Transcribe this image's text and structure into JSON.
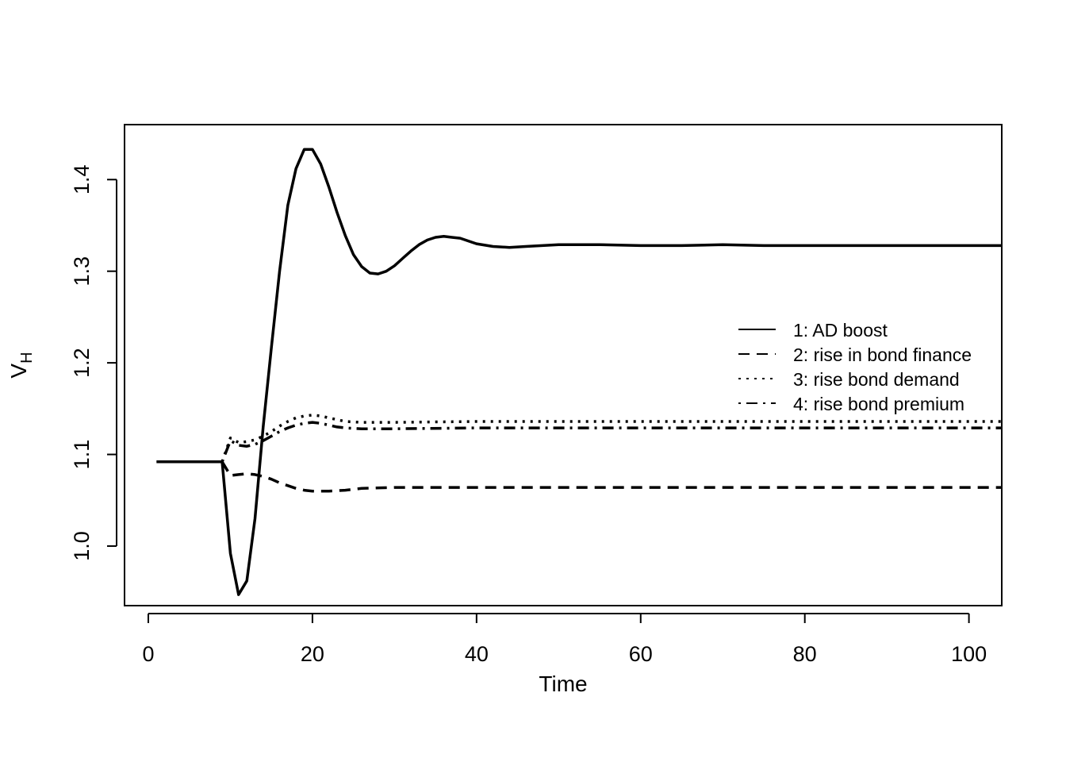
{
  "chart_data": {
    "type": "line",
    "title": "",
    "xlabel": "Time",
    "ylabel": "V",
    "ylabel_subscript": "H",
    "xlim": [
      -2.9,
      104.0
    ],
    "ylim": [
      0.935,
      1.46
    ],
    "x_ticks": [
      0,
      20,
      40,
      60,
      80,
      100
    ],
    "y_ticks": [
      1.0,
      1.1,
      1.2,
      1.3,
      1.4
    ],
    "x_tick_labels": [
      "0",
      "20",
      "40",
      "60",
      "80",
      "100"
    ],
    "y_tick_labels": [
      "1.0",
      "1.1",
      "1.2",
      "1.3",
      "1.4"
    ],
    "grid": false,
    "legend_position": "right",
    "series": [
      {
        "name": "1: AD boost",
        "dash": "solid",
        "points": [
          [
            1,
            1.092
          ],
          [
            9,
            1.092
          ],
          [
            10,
            0.992
          ],
          [
            11,
            0.947
          ],
          [
            12,
            0.962
          ],
          [
            13,
            1.03
          ],
          [
            14,
            1.13
          ],
          [
            15,
            1.217
          ],
          [
            16,
            1.3
          ],
          [
            17,
            1.372
          ],
          [
            18,
            1.412
          ],
          [
            19,
            1.433
          ],
          [
            20,
            1.433
          ],
          [
            21,
            1.417
          ],
          [
            22,
            1.392
          ],
          [
            23,
            1.364
          ],
          [
            24,
            1.339
          ],
          [
            25,
            1.318
          ],
          [
            26,
            1.305
          ],
          [
            27,
            1.298
          ],
          [
            28,
            1.297
          ],
          [
            29,
            1.3
          ],
          [
            30,
            1.306
          ],
          [
            31,
            1.314
          ],
          [
            32,
            1.322
          ],
          [
            33,
            1.329
          ],
          [
            34,
            1.334
          ],
          [
            35,
            1.337
          ],
          [
            36,
            1.338
          ],
          [
            37,
            1.337
          ],
          [
            38,
            1.336
          ],
          [
            39,
            1.333
          ],
          [
            40,
            1.33
          ],
          [
            42,
            1.327
          ],
          [
            44,
            1.326
          ],
          [
            46,
            1.327
          ],
          [
            48,
            1.328
          ],
          [
            50,
            1.329
          ],
          [
            55,
            1.329
          ],
          [
            60,
            1.328
          ],
          [
            65,
            1.328
          ],
          [
            70,
            1.329
          ],
          [
            75,
            1.328
          ],
          [
            80,
            1.328
          ],
          [
            90,
            1.328
          ],
          [
            100,
            1.328
          ],
          [
            104,
            1.328
          ]
        ]
      },
      {
        "name": "2: rise in bond finance",
        "dash": "dashed",
        "points": [
          [
            9,
            1.092
          ],
          [
            10,
            1.077
          ],
          [
            11,
            1.078
          ],
          [
            12,
            1.079
          ],
          [
            13,
            1.078
          ],
          [
            14,
            1.076
          ],
          [
            15,
            1.073
          ],
          [
            16,
            1.069
          ],
          [
            17,
            1.066
          ],
          [
            18,
            1.063
          ],
          [
            19,
            1.061
          ],
          [
            20,
            1.06
          ],
          [
            22,
            1.06
          ],
          [
            24,
            1.061
          ],
          [
            26,
            1.063
          ],
          [
            30,
            1.064
          ],
          [
            40,
            1.064
          ],
          [
            60,
            1.064
          ],
          [
            80,
            1.064
          ],
          [
            104,
            1.064
          ]
        ]
      },
      {
        "name": "3: rise bond demand",
        "dash": "dotted",
        "points": [
          [
            9,
            1.092
          ],
          [
            10,
            1.118
          ],
          [
            11,
            1.113
          ],
          [
            12,
            1.114
          ],
          [
            13,
            1.116
          ],
          [
            14,
            1.12
          ],
          [
            15,
            1.125
          ],
          [
            16,
            1.131
          ],
          [
            17,
            1.136
          ],
          [
            18,
            1.14
          ],
          [
            19,
            1.142
          ],
          [
            20,
            1.143
          ],
          [
            21,
            1.142
          ],
          [
            22,
            1.14
          ],
          [
            23,
            1.138
          ],
          [
            24,
            1.136
          ],
          [
            26,
            1.135
          ],
          [
            30,
            1.135
          ],
          [
            40,
            1.136
          ],
          [
            60,
            1.136
          ],
          [
            80,
            1.136
          ],
          [
            104,
            1.136
          ]
        ]
      },
      {
        "name": "4: rise bond premium",
        "dash": "dotdash",
        "points": [
          [
            9,
            1.092
          ],
          [
            10,
            1.115
          ],
          [
            11,
            1.11
          ],
          [
            12,
            1.109
          ],
          [
            13,
            1.111
          ],
          [
            14,
            1.115
          ],
          [
            15,
            1.12
          ],
          [
            16,
            1.125
          ],
          [
            17,
            1.129
          ],
          [
            18,
            1.132
          ],
          [
            19,
            1.134
          ],
          [
            20,
            1.135
          ],
          [
            21,
            1.134
          ],
          [
            22,
            1.132
          ],
          [
            23,
            1.13
          ],
          [
            24,
            1.129
          ],
          [
            26,
            1.128
          ],
          [
            30,
            1.128
          ],
          [
            40,
            1.129
          ],
          [
            60,
            1.129
          ],
          [
            80,
            1.129
          ],
          [
            104,
            1.129
          ]
        ]
      }
    ]
  }
}
